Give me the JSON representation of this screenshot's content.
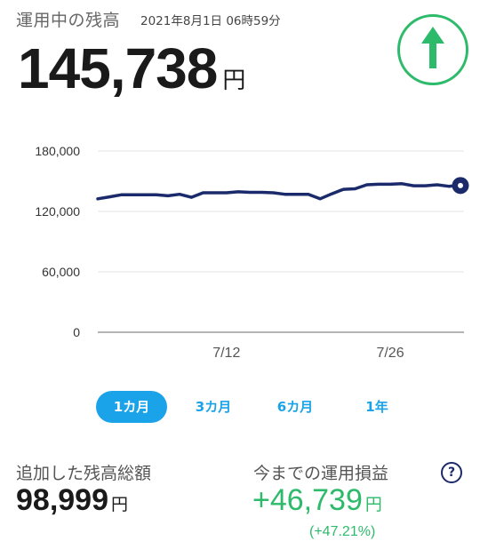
{
  "header": {
    "balance_label": "運用中の残高",
    "timestamp": "2021年8月1日 06時59分",
    "balance_amount": "145,738",
    "currency_unit": "円",
    "trend_icon": "arrow-up-icon",
    "trend_color": "#2dbb6b"
  },
  "chart_data": {
    "type": "line",
    "x_range": [
      0,
      31
    ],
    "x_ticks": [
      {
        "label": "7/12",
        "x": 11
      },
      {
        "label": "7/26",
        "x": 25
      }
    ],
    "y_ticks": [
      "180,000",
      "120,000",
      "60,000",
      "0"
    ],
    "y_tick_values": [
      180000,
      120000,
      60000,
      0
    ],
    "ylim": [
      0,
      180000
    ],
    "grid": true,
    "series": [
      {
        "color": "#1b2a6b",
        "x": [
          0,
          1,
          2,
          3,
          4,
          5,
          6,
          7,
          8,
          9,
          10,
          11,
          12,
          13,
          14,
          15,
          16,
          17,
          18,
          19,
          20,
          21,
          22,
          23,
          24,
          25,
          26,
          27,
          28,
          29,
          30,
          31
        ],
        "y": [
          132500,
          134500,
          136500,
          136500,
          136500,
          136500,
          135500,
          137000,
          134000,
          138500,
          138500,
          138500,
          139500,
          139000,
          139000,
          138500,
          137000,
          137000,
          137000,
          132500,
          137500,
          142000,
          142500,
          146500,
          147000,
          147000,
          147500,
          145500,
          145500,
          146500,
          145000,
          145738
        ]
      }
    ]
  },
  "range_tabs": [
    {
      "label": "1カ月",
      "active": true
    },
    {
      "label": "3カ月",
      "active": false
    },
    {
      "label": "6カ月",
      "active": false
    },
    {
      "label": "1年",
      "active": false
    }
  ],
  "added_total": {
    "label": "追加した残高総額",
    "value": "98,999",
    "unit": "円"
  },
  "profit": {
    "label": "今までの運用損益",
    "value": "+46,739",
    "unit": "円",
    "percent": "(+47.21%)",
    "help_icon": "question-circle-icon",
    "help_glyph": "?"
  }
}
